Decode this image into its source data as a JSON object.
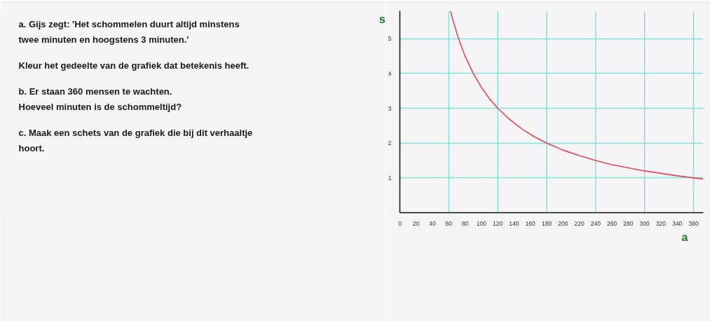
{
  "chart_data": {
    "type": "line",
    "xlabel": "a",
    "ylabel": "s",
    "annotations": [
      "a. Gijs zegt: 'Het schommelen duurt altijd minstens\ntwee minuten en hoogstens 3 minuten.'",
      "Kleur het gedeelte van de grafiek dat betekenis heeft.",
      "b. Er staan 360 mensen te wachten.\nHoeveel minuten is de schommeltijd?",
      "c. Maak een schets van de grafiek die bij dit verhaaltje\nhoort."
    ],
    "x": [
      62,
      65,
      70,
      75,
      80,
      90,
      100,
      110,
      120,
      135,
      150,
      165,
      180,
      200,
      220,
      240,
      260,
      280,
      300,
      320,
      340,
      360,
      372
    ],
    "series": [
      {
        "color": "#e0485a",
        "values": [
          5.8,
          5.54,
          5.14,
          4.8,
          4.5,
          4.0,
          3.6,
          3.27,
          3.0,
          2.67,
          2.4,
          2.18,
          2.0,
          1.8,
          1.64,
          1.5,
          1.38,
          1.29,
          1.2,
          1.13,
          1.06,
          1.0,
          0.97
        ]
      }
    ],
    "xlim": [
      0,
      372
    ],
    "ylim": [
      0,
      5.8
    ],
    "xticks": [
      0,
      20,
      40,
      60,
      80,
      100,
      120,
      140,
      160,
      180,
      200,
      220,
      240,
      260,
      280,
      300,
      320,
      340,
      360
    ],
    "yticks": [
      1,
      2,
      3,
      4,
      5
    ],
    "grid": "y",
    "line_style": "solid",
    "ref_lines": [
      {
        "axis": "x",
        "value": 60,
        "color": "#7fe5d5"
      },
      {
        "axis": "x",
        "value": 120,
        "color": "#7fe5d5"
      },
      {
        "axis": "x",
        "value": 180,
        "color": "#7fe5d5"
      },
      {
        "axis": "x",
        "value": 240,
        "color": "#7fe5d5"
      },
      {
        "axis": "x",
        "value": 300,
        "color": "#7fe5d5"
      },
      {
        "axis": "x",
        "value": 360,
        "color": "#7fe5d5"
      }
    ]
  }
}
